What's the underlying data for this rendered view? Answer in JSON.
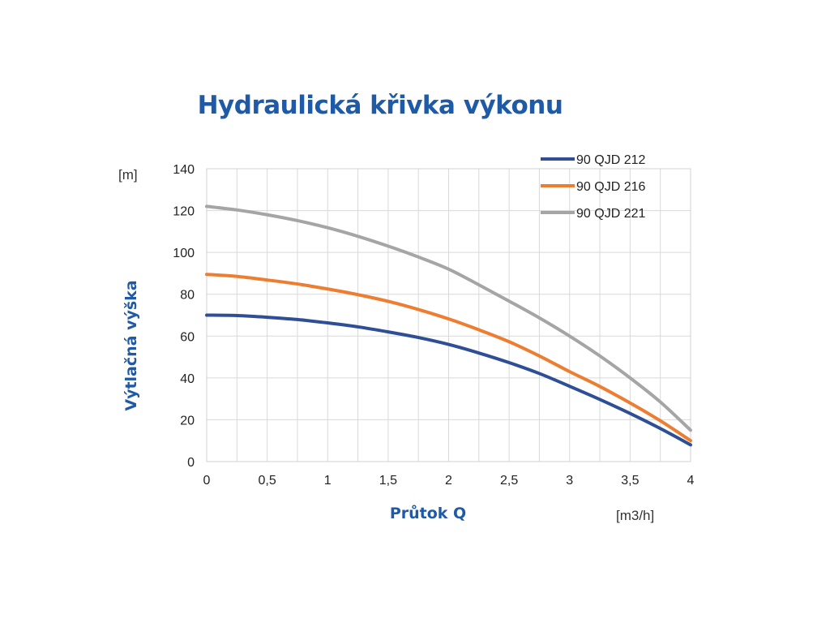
{
  "chart_data": {
    "type": "line",
    "title": "Hydraulická křivka výkonu",
    "xlabel": "Průtok Q",
    "ylabel": "Výtlačná výška",
    "x_unit": "[m3/h]",
    "y_unit": "[m]",
    "xlim": [
      0,
      4
    ],
    "ylim": [
      0,
      140
    ],
    "x_ticks": [
      0,
      0.5,
      1,
      1.5,
      2,
      2.5,
      3,
      3.5,
      4
    ],
    "x_tick_labels": [
      "0",
      "0,5",
      "1",
      "1,5",
      "2",
      "2,5",
      "3",
      "3,5",
      "4"
    ],
    "y_ticks": [
      0,
      20,
      40,
      60,
      80,
      100,
      120,
      140
    ],
    "y_tick_labels": [
      "0",
      "20",
      "40",
      "60",
      "80",
      "100",
      "120",
      "140"
    ],
    "grid": true,
    "legend_position": "top-right",
    "x": [
      0,
      0.25,
      0.5,
      0.75,
      1,
      1.25,
      1.5,
      1.75,
      2,
      2.25,
      2.5,
      2.75,
      3,
      3.25,
      3.5,
      3.75,
      4
    ],
    "series": [
      {
        "name": "90 QJD 212",
        "color": "#2E4E96",
        "values": [
          70,
          69.8,
          69,
          67.9,
          66.3,
          64.4,
          62,
          59.3,
          56,
          51.9,
          47.3,
          42.1,
          36,
          29.7,
          23,
          15.8,
          8
        ]
      },
      {
        "name": "90 QJD 216",
        "color": "#ED7D31",
        "values": [
          89.5,
          88.5,
          86.8,
          84.9,
          82.5,
          79.8,
          76.6,
          72.7,
          68.2,
          63,
          57.3,
          50.5,
          43,
          35.9,
          28,
          19.5,
          10
        ]
      },
      {
        "name": "90 QJD 221",
        "color": "#A5A5A5",
        "values": [
          122,
          120.3,
          118,
          115.2,
          111.8,
          107.7,
          103,
          97.8,
          92,
          84.5,
          76.7,
          68.7,
          60,
          50.5,
          40,
          28.5,
          15
        ]
      }
    ]
  }
}
